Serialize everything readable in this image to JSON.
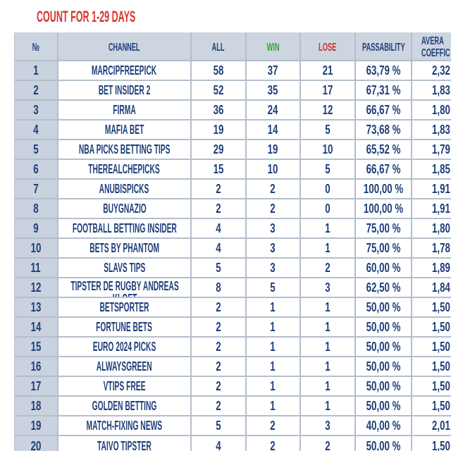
{
  "title": "COUNT FOR 1-29 DAYS",
  "header": {
    "num": "№",
    "channel": "CHANNEL",
    "all": "ALL",
    "win": "WIN",
    "lose": "LOSE",
    "passability": "PASSABILITY",
    "avg_line1": "AVERA",
    "avg_line2": "COEFFIC"
  },
  "rows": [
    {
      "num": "1",
      "channel": "MARCIPFREEPICK",
      "all": "58",
      "win": "37",
      "lose": "21",
      "passability": "63,79 %",
      "avg": "2,32"
    },
    {
      "num": "2",
      "channel": "BET INSIDER 2",
      "all": "52",
      "win": "35",
      "lose": "17",
      "passability": "67,31 %",
      "avg": "1,83"
    },
    {
      "num": "3",
      "channel": "FIRMA",
      "all": "36",
      "win": "24",
      "lose": "12",
      "passability": "66,67 %",
      "avg": "1,80"
    },
    {
      "num": "4",
      "channel": "MAFIA BET",
      "all": "19",
      "win": "14",
      "lose": "5",
      "passability": "73,68 %",
      "avg": "1,83"
    },
    {
      "num": "5",
      "channel": "NBA PICKS BETTING TIPS",
      "all": "29",
      "win": "19",
      "lose": "10",
      "passability": "65,52 %",
      "avg": "1,79"
    },
    {
      "num": "6",
      "channel": "THEREALCHEPICKS",
      "all": "15",
      "win": "10",
      "lose": "5",
      "passability": "66,67 %",
      "avg": "1,85"
    },
    {
      "num": "7",
      "channel": "ANUBISPICKS",
      "all": "2",
      "win": "2",
      "lose": "0",
      "passability": "100,00 %",
      "avg": "1,91"
    },
    {
      "num": "8",
      "channel": "BUYGNAZIO",
      "all": "2",
      "win": "2",
      "lose": "0",
      "passability": "100,00 %",
      "avg": "1,91"
    },
    {
      "num": "9",
      "channel": "FOOTBALL BETTING INSIDER",
      "all": "4",
      "win": "3",
      "lose": "1",
      "passability": "75,00 %",
      "avg": "1,80"
    },
    {
      "num": "10",
      "channel": "BETS BY PHANTOM",
      "all": "4",
      "win": "3",
      "lose": "1",
      "passability": "75,00 %",
      "avg": "1,78"
    },
    {
      "num": "11",
      "channel": "SLAVS TIPS",
      "all": "5",
      "win": "3",
      "lose": "2",
      "passability": "60,00 %",
      "avg": "1,89"
    },
    {
      "num": "12",
      "channel": "TIPSTER DE RUGBY ANDREAS KLOET",
      "all": "8",
      "win": "5",
      "lose": "3",
      "passability": "62,50 %",
      "avg": "1,84"
    },
    {
      "num": "13",
      "channel": "BETSPORTER",
      "all": "2",
      "win": "1",
      "lose": "1",
      "passability": "50,00 %",
      "avg": "1,50"
    },
    {
      "num": "14",
      "channel": "FORTUNE BETS",
      "all": "2",
      "win": "1",
      "lose": "1",
      "passability": "50,00 %",
      "avg": "1,50"
    },
    {
      "num": "15",
      "channel": "EURO 2024 PICKS",
      "all": "2",
      "win": "1",
      "lose": "1",
      "passability": "50,00 %",
      "avg": "1,50"
    },
    {
      "num": "16",
      "channel": "ALWAYSGREEN",
      "all": "2",
      "win": "1",
      "lose": "1",
      "passability": "50,00 %",
      "avg": "1,50"
    },
    {
      "num": "17",
      "channel": "VTIPS FREE",
      "all": "2",
      "win": "1",
      "lose": "1",
      "passability": "50,00 %",
      "avg": "1,50"
    },
    {
      "num": "18",
      "channel": "GOLDEN BETTING",
      "all": "2",
      "win": "1",
      "lose": "1",
      "passability": "50,00 %",
      "avg": "1,50"
    },
    {
      "num": "19",
      "channel": "MATCH-FIXING NEWS",
      "all": "5",
      "win": "2",
      "lose": "3",
      "passability": "40,00 %",
      "avg": "2,01"
    },
    {
      "num": "20",
      "channel": "TAIVO TIPSTER",
      "all": "4",
      "win": "2",
      "lose": "2",
      "passability": "50,00 %",
      "avg": "1,50"
    }
  ],
  "colors": {
    "title": "#d8342c",
    "text": "#1f3e7a",
    "win": "#35a335",
    "lose": "#cf2e2e",
    "header_bg": "#ccd5e0",
    "num_bg": "#c9d2de",
    "grid": "#b4bfcc",
    "cell_bg": "#ffffff"
  }
}
